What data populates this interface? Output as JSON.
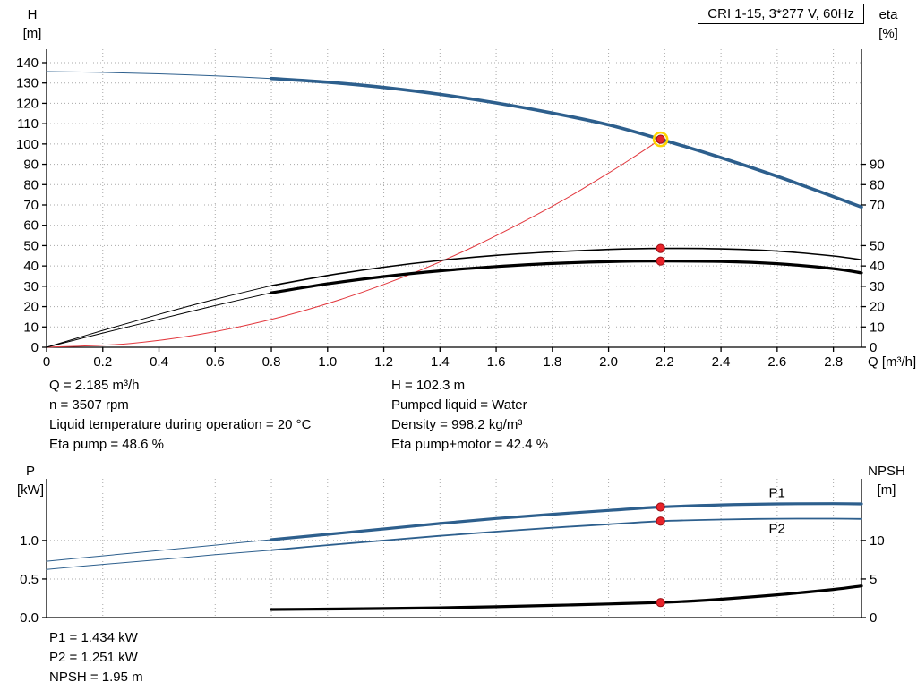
{
  "title_box": {
    "label": "CRI 1-15, 3*277 V, 60Hz"
  },
  "colors": {
    "curve_blue": "#2d5f8d",
    "label_blue": "#2e6db4",
    "curve_red": "#e2373d",
    "curve_black": "#000000",
    "marker": "#e8232a",
    "marker_edge": "#9b0f14",
    "duty_ring": "#ffd500",
    "grid": "#a8a8a8",
    "axis": "#000000"
  },
  "info_top": {
    "left": [
      "Q = 2.185 m³/h",
      "n = 3507 rpm",
      "Liquid temperature during operation = 20 °C",
      "Eta pump = 48.6 %"
    ],
    "right": [
      "H = 102.3 m",
      "Pumped liquid = Water",
      "Density = 998.2 kg/m³",
      "Eta pump+motor = 42.4 %"
    ]
  },
  "info_bottom": [
    "P1 = 1.434 kW",
    "P2 = 1.251 kW",
    "NPSH = 1.95 m"
  ],
  "chart_data": [
    {
      "id": "performance",
      "type": "line",
      "x_axis": {
        "label": "Q [m³/h]",
        "min": 0,
        "max": 2.9,
        "ticks": [
          0,
          0.2,
          0.4,
          0.6,
          0.8,
          1.0,
          1.2,
          1.4,
          1.6,
          1.8,
          2.0,
          2.2,
          2.4,
          2.6,
          2.8
        ],
        "tick_labels": [
          "0",
          "0.2",
          "0.4",
          "0.6",
          "0.8",
          "1.0",
          "1.2",
          "1.4",
          "1.6",
          "1.8",
          "2.0",
          "2.2",
          "2.4",
          "2.6",
          "2.8"
        ],
        "show_labels": true
      },
      "y_left": {
        "name": "H",
        "unit": "[m]",
        "min": 0,
        "max": 146.6,
        "ticks": [
          0,
          10,
          20,
          30,
          40,
          50,
          60,
          70,
          80,
          90,
          100,
          110,
          120,
          130,
          140
        ],
        "tick_labels": [
          "0",
          "10",
          "20",
          "30",
          "40",
          "50",
          "60",
          "70",
          "80",
          "90",
          "100",
          "110",
          "120",
          "130",
          "140"
        ]
      },
      "y_right": {
        "name": "eta",
        "unit": "[%]",
        "min": 0,
        "max": 146.6,
        "ticks": [
          0,
          10,
          20,
          30,
          40,
          50,
          70,
          80,
          90
        ],
        "tick_labels": [
          "0",
          "10",
          "20",
          "30",
          "40",
          "50",
          "70",
          "80",
          "90"
        ]
      },
      "series": [
        {
          "name": "head-curve-lead",
          "axis": "left",
          "color": "curve_blue",
          "width": 1,
          "points": [
            [
              0,
              135.6
            ],
            [
              0.2,
              135.2
            ],
            [
              0.4,
              134.5
            ],
            [
              0.6,
              133.5
            ],
            [
              0.8,
              132.2
            ]
          ]
        },
        {
          "name": "head-curve",
          "axis": "left",
          "color": "curve_blue",
          "width": 3.6,
          "points": [
            [
              0.8,
              132.2
            ],
            [
              1.0,
              130.4
            ],
            [
              1.2,
              127.8
            ],
            [
              1.4,
              124.4
            ],
            [
              1.6,
              120.2
            ],
            [
              1.8,
              115.2
            ],
            [
              2.0,
              109.4
            ],
            [
              2.185,
              102.3
            ],
            [
              2.4,
              93.3
            ],
            [
              2.6,
              84.1
            ],
            [
              2.8,
              74.1
            ],
            [
              2.9,
              69.0
            ]
          ]
        },
        {
          "name": "system-curve",
          "axis": "left",
          "color": "curve_red",
          "width": 1,
          "points": [
            [
              0,
              0
            ],
            [
              0.3,
              1.9
            ],
            [
              0.6,
              7.7
            ],
            [
              0.9,
              17.4
            ],
            [
              1.2,
              30.9
            ],
            [
              1.5,
              48.2
            ],
            [
              1.8,
              69.4
            ],
            [
              2.0,
              85.7
            ],
            [
              2.1,
              94.5
            ],
            [
              2.185,
              102.3
            ]
          ]
        },
        {
          "name": "eta-pump-curve-lead",
          "axis": "right",
          "color": "curve_black",
          "width": 1,
          "points": [
            [
              0,
              0
            ],
            [
              0.2,
              8.3
            ],
            [
              0.4,
              16.2
            ],
            [
              0.6,
              23.6
            ],
            [
              0.8,
              30.3
            ]
          ]
        },
        {
          "name": "eta-pump-curve",
          "axis": "right",
          "color": "curve_black",
          "width": 1.6,
          "points": [
            [
              0.8,
              30.3
            ],
            [
              1.0,
              35.3
            ],
            [
              1.2,
              39.4
            ],
            [
              1.4,
              42.7
            ],
            [
              1.6,
              45.2
            ],
            [
              1.8,
              46.9
            ],
            [
              2.0,
              48.1
            ],
            [
              2.185,
              48.6
            ],
            [
              2.4,
              48.4
            ],
            [
              2.6,
              47.3
            ],
            [
              2.8,
              44.9
            ],
            [
              2.9,
              43.0
            ]
          ]
        },
        {
          "name": "eta-pump-motor-curve-lead",
          "axis": "right",
          "color": "curve_black",
          "width": 1,
          "points": [
            [
              0,
              0
            ],
            [
              0.2,
              7.0
            ],
            [
              0.4,
              13.8
            ],
            [
              0.6,
              20.5
            ],
            [
              0.8,
              26.8
            ]
          ]
        },
        {
          "name": "eta-pump-motor-curve",
          "axis": "right",
          "color": "curve_black",
          "width": 3.2,
          "points": [
            [
              0.8,
              26.8
            ],
            [
              1.0,
              31.2
            ],
            [
              1.2,
              34.8
            ],
            [
              1.4,
              37.6
            ],
            [
              1.6,
              39.7
            ],
            [
              1.8,
              41.2
            ],
            [
              2.0,
              42.1
            ],
            [
              2.185,
              42.4
            ],
            [
              2.4,
              42.2
            ],
            [
              2.6,
              41.1
            ],
            [
              2.8,
              38.7
            ],
            [
              2.9,
              36.6
            ]
          ]
        }
      ],
      "markers": [
        {
          "name": "duty-point-head",
          "q": 2.185,
          "v": 102.3,
          "axis": "left",
          "ring": true
        },
        {
          "name": "duty-point-eta-pump",
          "q": 2.185,
          "v": 48.6,
          "axis": "right",
          "ring": false
        },
        {
          "name": "duty-point-eta-total",
          "q": 2.185,
          "v": 42.4,
          "axis": "right",
          "ring": false
        }
      ]
    },
    {
      "id": "power-npsh",
      "type": "line",
      "x_axis": {
        "label": "",
        "min": 0,
        "max": 2.9,
        "ticks": [
          0,
          0.2,
          0.4,
          0.6,
          0.8,
          1.0,
          1.2,
          1.4,
          1.6,
          1.8,
          2.0,
          2.2,
          2.4,
          2.6,
          2.8
        ],
        "tick_labels": [],
        "show_labels": false
      },
      "y_left": {
        "name": "P",
        "unit": "[kW]",
        "min": 0,
        "max": 1.8,
        "ticks": [
          0,
          0.5,
          1.0
        ],
        "tick_labels": [
          "0.0",
          "0.5",
          "1.0"
        ]
      },
      "y_right": {
        "name": "NPSH",
        "unit": "[m]",
        "min": 0,
        "max": 18.0,
        "ticks": [
          0,
          5,
          10
        ],
        "tick_labels": [
          "0",
          "5",
          "10"
        ]
      },
      "series": [
        {
          "name": "p1-curve-lead",
          "axis": "left",
          "color": "curve_blue",
          "width": 1,
          "points": [
            [
              0,
              0.73
            ],
            [
              0.2,
              0.8
            ],
            [
              0.4,
              0.87
            ],
            [
              0.6,
              0.94
            ],
            [
              0.8,
              1.01
            ]
          ]
        },
        {
          "name": "p1-curve",
          "axis": "left",
          "color": "curve_blue",
          "width": 3.2,
          "label": {
            "text": "P1",
            "q": 2.57,
            "v": 1.56
          },
          "points": [
            [
              0.8,
              1.01
            ],
            [
              1.0,
              1.08
            ],
            [
              1.2,
              1.15
            ],
            [
              1.4,
              1.22
            ],
            [
              1.6,
              1.285
            ],
            [
              1.8,
              1.34
            ],
            [
              2.0,
              1.39
            ],
            [
              2.185,
              1.434
            ],
            [
              2.4,
              1.462
            ],
            [
              2.6,
              1.475
            ],
            [
              2.8,
              1.478
            ],
            [
              2.9,
              1.475
            ]
          ]
        },
        {
          "name": "p2-curve-lead",
          "axis": "left",
          "color": "curve_blue",
          "width": 1,
          "points": [
            [
              0,
              0.625
            ],
            [
              0.2,
              0.69
            ],
            [
              0.4,
              0.75
            ],
            [
              0.6,
              0.815
            ],
            [
              0.8,
              0.875
            ]
          ]
        },
        {
          "name": "p2-curve",
          "axis": "left",
          "color": "curve_blue",
          "width": 1.8,
          "label": {
            "text": "P2",
            "q": 2.57,
            "v": 1.095
          },
          "points": [
            [
              0.8,
              0.875
            ],
            [
              1.0,
              0.94
            ],
            [
              1.2,
              1.0
            ],
            [
              1.4,
              1.06
            ],
            [
              1.6,
              1.115
            ],
            [
              1.8,
              1.165
            ],
            [
              2.0,
              1.21
            ],
            [
              2.185,
              1.251
            ],
            [
              2.4,
              1.272
            ],
            [
              2.6,
              1.282
            ],
            [
              2.8,
              1.283
            ],
            [
              2.9,
              1.28
            ]
          ]
        },
        {
          "name": "npsh-curve",
          "axis": "right",
          "color": "curve_black",
          "width": 3.2,
          "points": [
            [
              0.8,
              1.05
            ],
            [
              1.0,
              1.1
            ],
            [
              1.2,
              1.17
            ],
            [
              1.4,
              1.27
            ],
            [
              1.6,
              1.41
            ],
            [
              1.8,
              1.58
            ],
            [
              2.0,
              1.77
            ],
            [
              2.185,
              1.95
            ],
            [
              2.3,
              2.15
            ],
            [
              2.4,
              2.38
            ],
            [
              2.6,
              2.95
            ],
            [
              2.8,
              3.65
            ],
            [
              2.9,
              4.1
            ]
          ]
        }
      ],
      "markers": [
        {
          "name": "duty-point-p1",
          "q": 2.185,
          "v": 1.434,
          "axis": "left",
          "ring": false
        },
        {
          "name": "duty-point-p2",
          "q": 2.185,
          "v": 1.251,
          "axis": "left",
          "ring": false
        },
        {
          "name": "duty-point-npsh",
          "q": 2.185,
          "v": 1.95,
          "axis": "right",
          "ring": false
        }
      ]
    }
  ]
}
